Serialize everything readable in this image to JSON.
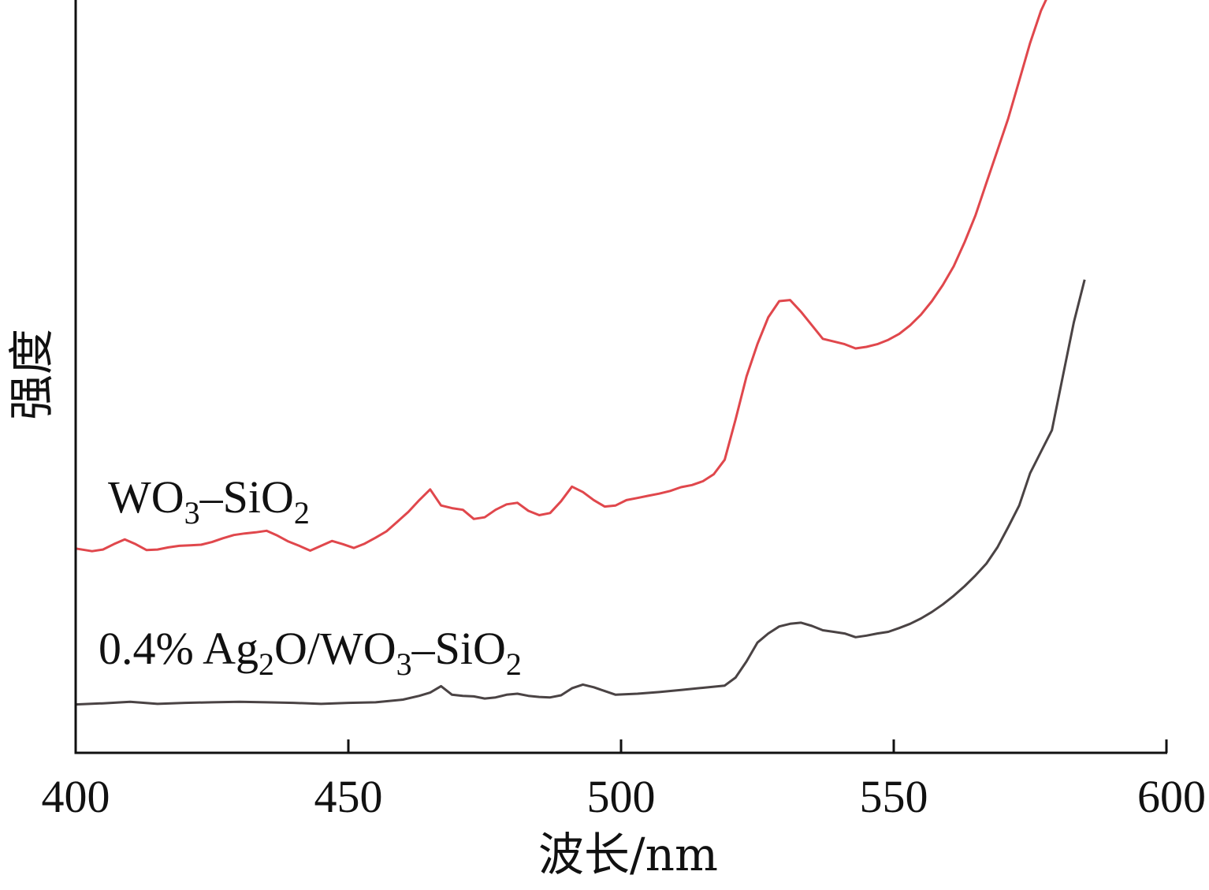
{
  "chart_data": {
    "type": "line",
    "title": "",
    "xlabel": "波长/nm",
    "ylabel": "强度",
    "xlim": [
      400,
      600
    ],
    "ylim": [
      0,
      1.4
    ],
    "xticks": [
      400,
      450,
      500,
      550,
      600
    ],
    "grid": false,
    "legend": "none",
    "series": [
      {
        "name": "WO₃–SiO₂",
        "label_parts": [
          "WO",
          "3",
          "–SiO",
          "2"
        ],
        "color": "#e0474c",
        "x": [
          400,
          403,
          405,
          407,
          409,
          411,
          413,
          415,
          417,
          419,
          421,
          423,
          425,
          427,
          429,
          431,
          433,
          435,
          437,
          439,
          441,
          443,
          445,
          447,
          449,
          451,
          453,
          455,
          457,
          459,
          461,
          463,
          465,
          467,
          469,
          471,
          473,
          475,
          477,
          479,
          481,
          483,
          485,
          487,
          489,
          491,
          493,
          495,
          497,
          499,
          501,
          503,
          505,
          507,
          509,
          511,
          513,
          515,
          517,
          519,
          521,
          523,
          525,
          527,
          529,
          531,
          533,
          535,
          537,
          539,
          541,
          543,
          545,
          547,
          549,
          551,
          553,
          555,
          557,
          559,
          561,
          563,
          565,
          567,
          569,
          571,
          573,
          575,
          577,
          578
        ],
        "y": [
          0.38,
          0.375,
          0.378,
          0.388,
          0.397,
          0.388,
          0.377,
          0.378,
          0.382,
          0.385,
          0.386,
          0.387,
          0.392,
          0.399,
          0.405,
          0.408,
          0.41,
          0.413,
          0.404,
          0.393,
          0.385,
          0.376,
          0.385,
          0.394,
          0.388,
          0.381,
          0.389,
          0.4,
          0.412,
          0.43,
          0.448,
          0.47,
          0.49,
          0.46,
          0.455,
          0.452,
          0.435,
          0.438,
          0.452,
          0.462,
          0.465,
          0.45,
          0.442,
          0.446,
          0.468,
          0.495,
          0.485,
          0.47,
          0.458,
          0.46,
          0.47,
          0.474,
          0.478,
          0.482,
          0.487,
          0.494,
          0.498,
          0.505,
          0.518,
          0.545,
          0.62,
          0.7,
          0.76,
          0.81,
          0.84,
          0.842,
          0.82,
          0.795,
          0.77,
          0.765,
          0.76,
          0.752,
          0.755,
          0.76,
          0.768,
          0.779,
          0.795,
          0.815,
          0.84,
          0.87,
          0.905,
          0.95,
          1.0,
          1.06,
          1.12,
          1.18,
          1.25,
          1.32,
          1.38,
          1.402
        ]
      },
      {
        "name": "0.4% Ag₂O/WO₃–SiO₂",
        "label_parts": [
          "0.4% Ag",
          "2",
          "O/WO",
          "3",
          "–SiO",
          "2"
        ],
        "color": "#4a4344",
        "x": [
          400,
          405,
          410,
          415,
          420,
          425,
          430,
          435,
          440,
          445,
          450,
          455,
          460,
          463,
          465,
          467,
          469,
          471,
          473,
          475,
          477,
          479,
          481,
          483,
          485,
          487,
          489,
          491,
          493,
          495,
          497,
          499,
          503,
          507,
          511,
          515,
          519,
          521,
          523,
          525,
          527,
          529,
          531,
          533,
          535,
          537,
          539,
          541,
          543,
          545,
          547,
          549,
          551,
          553,
          555,
          557,
          559,
          561,
          563,
          565,
          567,
          569,
          571,
          573,
          575,
          577,
          579,
          581,
          583,
          585
        ],
        "y": [
          0.09,
          0.092,
          0.095,
          0.091,
          0.093,
          0.094,
          0.095,
          0.094,
          0.093,
          0.091,
          0.093,
          0.094,
          0.099,
          0.106,
          0.112,
          0.124,
          0.108,
          0.106,
          0.105,
          0.101,
          0.103,
          0.108,
          0.11,
          0.106,
          0.104,
          0.103,
          0.107,
          0.12,
          0.127,
          0.122,
          0.115,
          0.108,
          0.11,
          0.113,
          0.117,
          0.121,
          0.125,
          0.14,
          0.17,
          0.205,
          0.222,
          0.235,
          0.24,
          0.242,
          0.236,
          0.228,
          0.225,
          0.222,
          0.215,
          0.218,
          0.222,
          0.225,
          0.232,
          0.24,
          0.25,
          0.262,
          0.276,
          0.292,
          0.31,
          0.33,
          0.352,
          0.382,
          0.42,
          0.46,
          0.52,
          0.56,
          0.6,
          0.7,
          0.8,
          0.88
        ]
      }
    ]
  }
}
